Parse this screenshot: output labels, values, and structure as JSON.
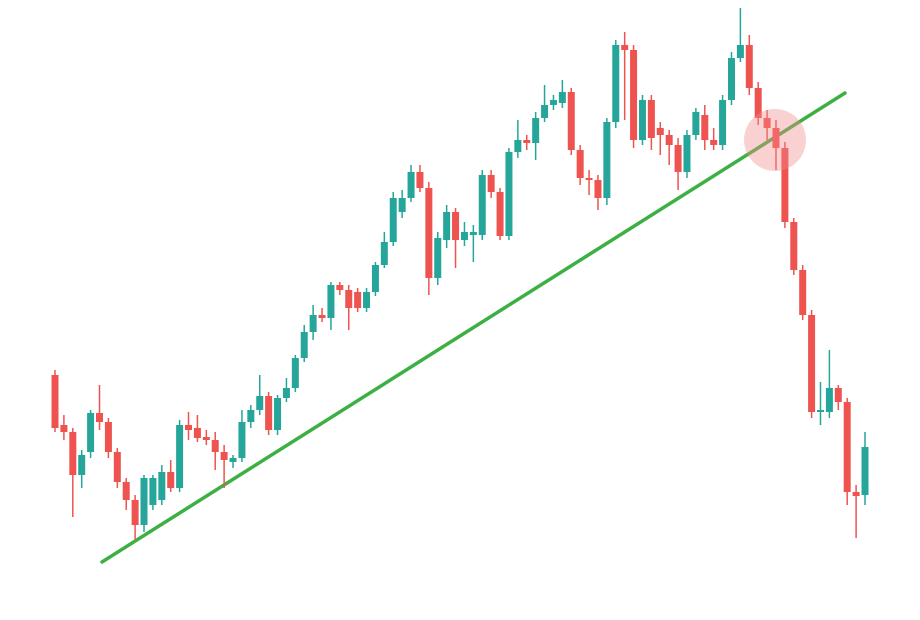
{
  "chart_data": {
    "type": "candlestick",
    "up_color": "#26a69a",
    "down_color": "#ef5350",
    "ylim": [
      0,
      620
    ],
    "open": [
      245,
      195,
      188,
      145,
      168,
      207,
      198,
      168,
      138,
      120,
      95,
      115,
      120,
      148,
      132,
      195,
      192,
      183,
      180,
      168,
      158,
      162,
      198,
      210,
      224,
      190,
      222,
      232,
      262,
      288,
      305,
      302,
      335,
      330,
      328,
      312,
      328,
      355,
      378,
      408,
      422,
      448,
      432,
      342,
      380,
      408,
      380,
      385,
      385,
      445,
      428,
      384,
      468,
      480,
      477,
      502,
      515,
      517,
      528,
      470,
      442,
      440,
      422,
      498,
      575,
      570,
      480,
      520,
      492,
      485,
      475,
      448,
      485,
      505,
      480,
      475,
      520,
      562,
      575,
      532,
      502,
      492,
      472,
      398,
      350,
      305,
      208,
      208,
      232,
      218,
      128,
      125
    ],
    "high": [
      250,
      205,
      192,
      170,
      210,
      235,
      202,
      172,
      142,
      125,
      145,
      145,
      155,
      160,
      200,
      208,
      205,
      190,
      188,
      175,
      165,
      210,
      215,
      245,
      228,
      225,
      242,
      265,
      295,
      315,
      312,
      338,
      338,
      335,
      332,
      332,
      358,
      388,
      428,
      430,
      455,
      455,
      438,
      388,
      415,
      412,
      398,
      395,
      450,
      450,
      432,
      472,
      500,
      485,
      508,
      535,
      525,
      540,
      532,
      475,
      450,
      445,
      502,
      580,
      588,
      575,
      525,
      525,
      498,
      490,
      482,
      490,
      512,
      515,
      492,
      525,
      568,
      612,
      585,
      538,
      510,
      500,
      478,
      402,
      355,
      310,
      238,
      270,
      235,
      222,
      135,
      188
    ],
    "low": [
      188,
      180,
      103,
      132,
      162,
      190,
      162,
      132,
      110,
      80,
      88,
      110,
      115,
      128,
      128,
      180,
      178,
      175,
      150,
      132,
      152,
      158,
      192,
      205,
      185,
      185,
      218,
      228,
      258,
      280,
      298,
      290,
      325,
      290,
      308,
      308,
      324,
      352,
      374,
      402,
      418,
      428,
      325,
      335,
      372,
      352,
      374,
      358,
      380,
      422,
      380,
      380,
      462,
      470,
      460,
      498,
      510,
      512,
      465,
      435,
      425,
      410,
      415,
      492,
      500,
      472,
      475,
      470,
      465,
      455,
      430,
      442,
      480,
      470,
      470,
      470,
      515,
      558,
      525,
      495,
      480,
      450,
      392,
      345,
      300,
      202,
      195,
      202,
      210,
      115,
      82,
      115
    ],
    "close": [
      192,
      188,
      145,
      165,
      207,
      198,
      168,
      138,
      120,
      95,
      142,
      142,
      148,
      132,
      195,
      190,
      182,
      180,
      168,
      160,
      162,
      198,
      210,
      224,
      190,
      222,
      232,
      262,
      288,
      305,
      302,
      335,
      330,
      312,
      312,
      328,
      355,
      378,
      422,
      422,
      448,
      432,
      342,
      382,
      408,
      380,
      388,
      388,
      445,
      428,
      384,
      468,
      480,
      477,
      502,
      515,
      520,
      528,
      470,
      442,
      440,
      422,
      498,
      575,
      570,
      480,
      520,
      482,
      485,
      475,
      448,
      485,
      508,
      480,
      475,
      520,
      562,
      575,
      532,
      502,
      492,
      472,
      398,
      350,
      305,
      208,
      210,
      232,
      218,
      128,
      124,
      173
    ]
  }
}
